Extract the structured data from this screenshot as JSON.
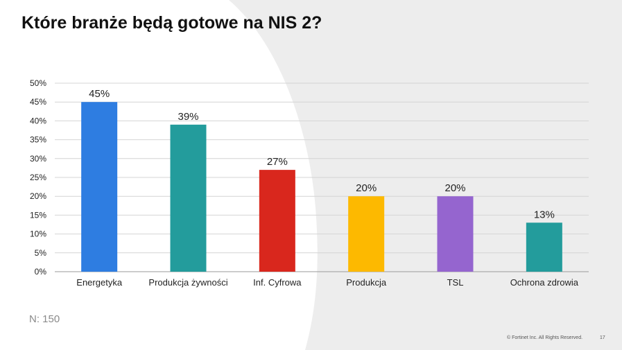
{
  "slide": {
    "title": "Które branże będą gotowe na NIS 2?",
    "sample_note": "N: 150",
    "copyright": "© Fortinet Inc. All Rights Reserved.",
    "page_number": "17"
  },
  "chart_data": {
    "type": "bar",
    "categories": [
      "Energetyka",
      "Produkcja żywności",
      "Inf. Cyfrowa",
      "Produkcja",
      "TSL",
      "Ochrona zdrowia"
    ],
    "values": [
      45,
      39,
      27,
      20,
      20,
      13
    ],
    "value_labels": [
      "45%",
      "39%",
      "27%",
      "20%",
      "20%",
      "13%"
    ],
    "colors": [
      "#2e7de1",
      "#239c9c",
      "#d9271d",
      "#fdb900",
      "#9565cf",
      "#239c9c"
    ],
    "title": "",
    "xlabel": "",
    "ylabel": "",
    "ylim": [
      0,
      50
    ],
    "yticks": [
      0,
      5,
      10,
      15,
      20,
      25,
      30,
      35,
      40,
      45,
      50
    ],
    "ytick_labels": [
      "0%",
      "5%",
      "10%",
      "15%",
      "20%",
      "25%",
      "30%",
      "35%",
      "40%",
      "45%",
      "50%"
    ],
    "grid": true,
    "legend": "none"
  }
}
